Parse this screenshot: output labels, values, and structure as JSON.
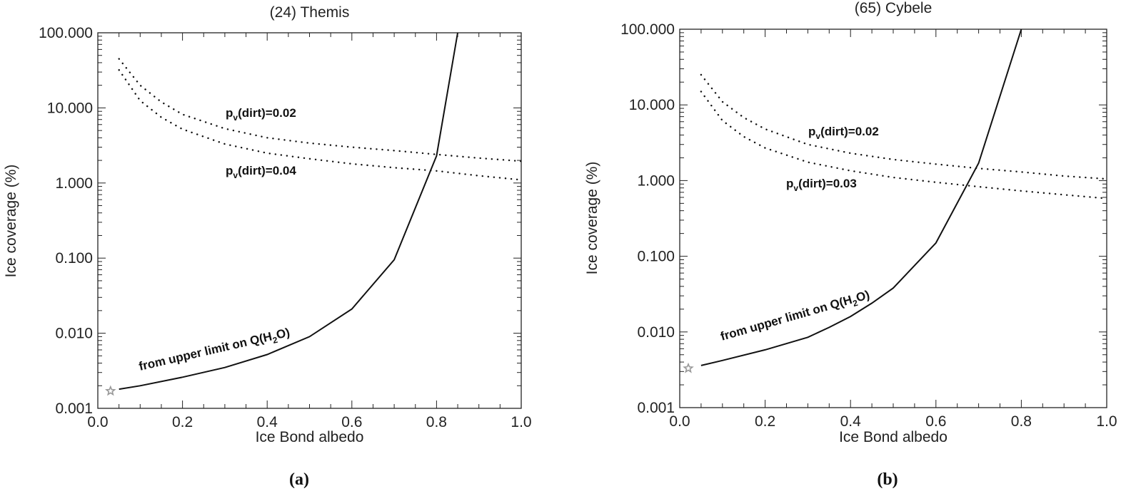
{
  "chart_data": [
    {
      "type": "line",
      "panel": "a",
      "caption": "(a)",
      "title": "(24) Themis",
      "xlabel": "Ice Bond albedo",
      "ylabel": "Ice coverage (%)",
      "xlim": [
        0.0,
        1.0
      ],
      "ylim": [
        0.001,
        100.0
      ],
      "yscale": "log",
      "xticks": [
        "0.0",
        "0.2",
        "0.4",
        "0.6",
        "0.8",
        "1.0"
      ],
      "yticks": [
        "0.001",
        "0.010",
        "0.100",
        "1.000",
        "10.000",
        "100.000"
      ],
      "series": [
        {
          "name": "from upper limit on Q(H2O)",
          "label_main": "from upper limit on Q(H",
          "label_sub": "2",
          "label_tail": "O)",
          "style": "solid",
          "x": [
            0.05,
            0.1,
            0.2,
            0.3,
            0.4,
            0.5,
            0.6,
            0.7,
            0.8,
            0.85
          ],
          "y": [
            0.0018,
            0.002,
            0.0026,
            0.0035,
            0.0052,
            0.009,
            0.021,
            0.095,
            2.3,
            100
          ]
        },
        {
          "name": "pv(dirt)=0.02",
          "label_main": "p",
          "label_sub": "v",
          "label_tail": "(dirt)=0.02",
          "style": "dotted",
          "x": [
            0.05,
            0.1,
            0.15,
            0.2,
            0.3,
            0.4,
            0.5,
            0.6,
            0.7,
            0.8,
            0.9,
            1.0
          ],
          "y": [
            45,
            20,
            12,
            8.2,
            5.3,
            4.0,
            3.4,
            3.0,
            2.7,
            2.4,
            2.15,
            1.95
          ]
        },
        {
          "name": "pv(dirt)=0.04",
          "label_main": "p",
          "label_sub": "v",
          "label_tail": "(dirt)=0.04",
          "style": "dotted",
          "x": [
            0.05,
            0.1,
            0.15,
            0.2,
            0.3,
            0.4,
            0.5,
            0.6,
            0.7,
            0.8,
            0.9,
            1.0
          ],
          "y": [
            32,
            12.5,
            7.5,
            5.2,
            3.3,
            2.5,
            2.1,
            1.8,
            1.6,
            1.45,
            1.25,
            1.1
          ]
        }
      ],
      "marker": {
        "name": "star",
        "x": 0.03,
        "y": 0.0017,
        "color": "#999999"
      }
    },
    {
      "type": "line",
      "panel": "b",
      "caption": "(b)",
      "title": "(65) Cybele",
      "xlabel": "Ice Bond albedo",
      "ylabel": "Ice coverage (%)",
      "xlim": [
        0.0,
        1.0
      ],
      "ylim": [
        0.001,
        100.0
      ],
      "yscale": "log",
      "xticks": [
        "0.0",
        "0.2",
        "0.4",
        "0.6",
        "0.8",
        "1.0"
      ],
      "yticks": [
        "0.001",
        "0.010",
        "0.100",
        "1.000",
        "10.000",
        "100.000"
      ],
      "series": [
        {
          "name": "from upper limit on Q(H2O)",
          "label_main": "from upper limit on Q(H",
          "label_sub": "2",
          "label_tail": "O)",
          "style": "solid",
          "x": [
            0.05,
            0.1,
            0.2,
            0.3,
            0.35,
            0.4,
            0.45,
            0.5,
            0.6,
            0.7,
            0.8
          ],
          "y": [
            0.0036,
            0.0042,
            0.0058,
            0.0085,
            0.0115,
            0.016,
            0.024,
            0.038,
            0.15,
            1.7,
            100
          ]
        },
        {
          "name": "pv(dirt)=0.02",
          "label_main": "p",
          "label_sub": "v",
          "label_tail": "(dirt)=0.02",
          "style": "dotted",
          "x": [
            0.05,
            0.1,
            0.15,
            0.2,
            0.3,
            0.4,
            0.5,
            0.6,
            0.7,
            0.8,
            0.9,
            1.0
          ],
          "y": [
            25,
            11,
            6.8,
            4.8,
            3.0,
            2.3,
            1.9,
            1.65,
            1.45,
            1.3,
            1.15,
            1.05
          ]
        },
        {
          "name": "pv(dirt)=0.03",
          "label_main": "p",
          "label_sub": "v",
          "label_tail": "(dirt)=0.03",
          "style": "dotted",
          "x": [
            0.05,
            0.1,
            0.15,
            0.2,
            0.3,
            0.4,
            0.5,
            0.6,
            0.7,
            0.8,
            0.9,
            1.0
          ],
          "y": [
            15,
            6.2,
            3.8,
            2.7,
            1.75,
            1.35,
            1.1,
            0.95,
            0.83,
            0.73,
            0.65,
            0.58
          ]
        }
      ],
      "marker": {
        "name": "star",
        "x": 0.02,
        "y": 0.0033,
        "color": "#999999"
      }
    }
  ]
}
